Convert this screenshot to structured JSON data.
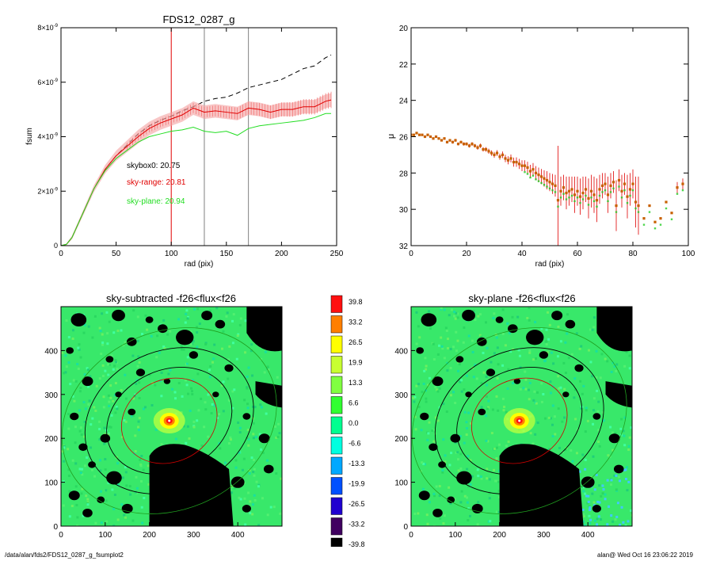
{
  "footer": {
    "path": "/data/alan/fds2/FDS12_0287_g_fsumplot2",
    "stamp": "alan@  Wed Oct 16 23:06:22 2019"
  },
  "colors": {
    "black": "#000000",
    "red": "#e00000",
    "pink": "#f08080",
    "green": "#22dd22",
    "orange": "#c86000",
    "gray": "#808080"
  },
  "chart_data": [
    {
      "type": "line",
      "title": "FDS12_0287_g",
      "xlabel": "rad (pix)",
      "ylabel": "fsum",
      "xlim": [
        0,
        250
      ],
      "ylim": [
        0,
        8e-09
      ],
      "xticks": [
        0,
        50,
        100,
        150,
        200,
        250
      ],
      "yticks": [
        {
          "label": "0",
          "value": 0
        },
        {
          "label": "2×10",
          "exp": "-9",
          "value": 2e-09
        },
        {
          "label": "4×10",
          "exp": "-9",
          "value": 4e-09
        },
        {
          "label": "6×10",
          "exp": "-9",
          "value": 6e-09
        },
        {
          "label": "8×10",
          "exp": "-9",
          "value": 8e-09
        }
      ],
      "vlines": [
        {
          "x": 100,
          "color": "#e00000"
        },
        {
          "x": 130,
          "color": "#808080"
        },
        {
          "x": 170,
          "color": "#808080"
        }
      ],
      "annotations": [
        {
          "text": "skybox0: 20.75",
          "color": "#000000"
        },
        {
          "text": "sky-range: 20.81",
          "color": "#e00000"
        },
        {
          "text": "sky-plane: 20.94",
          "color": "#22dd22"
        }
      ],
      "x": [
        0,
        5,
        10,
        20,
        30,
        40,
        50,
        60,
        70,
        80,
        90,
        100,
        110,
        120,
        130,
        140,
        150,
        160,
        170,
        180,
        190,
        200,
        210,
        220,
        230,
        240,
        245
      ],
      "series": [
        {
          "color": "#000000",
          "dash": true,
          "values": [
            0,
            5e-11,
            3e-10,
            1.2e-09,
            2.1e-09,
            2.8e-09,
            3.3e-09,
            3.7e-09,
            4.1e-09,
            4.4e-09,
            4.6e-09,
            4.75e-09,
            4.95e-09,
            5.1e-09,
            5.3e-09,
            5.4e-09,
            5.45e-09,
            5.6e-09,
            5.8e-09,
            5.9e-09,
            6e-09,
            6.1e-09,
            6.3e-09,
            6.5e-09,
            6.6e-09,
            6.9e-09,
            7e-09
          ]
        },
        {
          "color": "#e00000",
          "error_band": 2.5e-10,
          "values": [
            0,
            5e-11,
            3e-10,
            1.2e-09,
            2.1e-09,
            2.8e-09,
            3.3e-09,
            3.65e-09,
            4e-09,
            4.3e-09,
            4.5e-09,
            4.65e-09,
            4.8e-09,
            5.05e-09,
            4.9e-09,
            4.95e-09,
            4.9e-09,
            4.85e-09,
            5.05e-09,
            5e-09,
            4.9e-09,
            5e-09,
            5e-09,
            5.1e-09,
            5.1e-09,
            5.3e-09,
            5.35e-09
          ]
        },
        {
          "color": "#22dd22",
          "values": [
            0,
            5e-11,
            3e-10,
            1.2e-09,
            2.1e-09,
            2.75e-09,
            3.2e-09,
            3.5e-09,
            3.8e-09,
            4e-09,
            4.1e-09,
            4.2e-09,
            4.25e-09,
            4.35e-09,
            4.2e-09,
            4.15e-09,
            4.2e-09,
            4.05e-09,
            4.3e-09,
            4.4e-09,
            4.45e-09,
            4.5e-09,
            4.55e-09,
            4.6e-09,
            4.7e-09,
            4.85e-09,
            4.85e-09
          ]
        }
      ]
    },
    {
      "type": "scatter",
      "title": "",
      "xlabel": "rad (pix)",
      "ylabel": "μ",
      "xlim": [
        0,
        100
      ],
      "ylim": [
        32,
        20
      ],
      "yreversed": true,
      "xticks": [
        0,
        20,
        40,
        60,
        80,
        100
      ],
      "yticks": [
        20,
        22,
        24,
        26,
        28,
        30,
        32
      ],
      "series": [
        {
          "color": "#c86000",
          "x": [
            0,
            1,
            2,
            3,
            4,
            5,
            6,
            7,
            8,
            9,
            10,
            11,
            12,
            13,
            14,
            15,
            16,
            17,
            18,
            19,
            20,
            21,
            22,
            23,
            24,
            25,
            26,
            27,
            28,
            29,
            30,
            31,
            32,
            33,
            34,
            35,
            36,
            37,
            38,
            39,
            40,
            41,
            42,
            43,
            44,
            45,
            46,
            47,
            48,
            49,
            50,
            51,
            52,
            53,
            54,
            55,
            56,
            57,
            58,
            59,
            60,
            61,
            62,
            63,
            64,
            65,
            66,
            67,
            68,
            69,
            70,
            71,
            72,
            73,
            74,
            75,
            76,
            77,
            78,
            79,
            80,
            81,
            82,
            84,
            86,
            88,
            90,
            92,
            94,
            96,
            98
          ],
          "y": [
            25.9,
            25.9,
            25.8,
            25.9,
            25.9,
            26.0,
            25.9,
            26.0,
            26.1,
            26.0,
            26.1,
            26.2,
            26.1,
            26.3,
            26.2,
            26.3,
            26.2,
            26.4,
            26.3,
            26.4,
            26.4,
            26.5,
            26.4,
            26.5,
            26.6,
            26.5,
            26.7,
            26.7,
            26.8,
            26.9,
            27.0,
            26.9,
            27.1,
            27.0,
            27.2,
            27.3,
            27.2,
            27.4,
            27.4,
            27.5,
            27.6,
            27.6,
            27.7,
            27.9,
            27.8,
            28.0,
            28.1,
            28.2,
            28.3,
            28.4,
            28.5,
            28.6,
            28.7,
            29.5,
            29.0,
            28.8,
            29.1,
            29.0,
            28.9,
            29.2,
            29.0,
            29.3,
            29.1,
            28.9,
            29.4,
            29.0,
            29.2,
            29.5,
            28.9,
            28.7,
            28.6,
            29.2,
            28.7,
            28.5,
            29.8,
            28.4,
            29.0,
            28.6,
            29.3,
            28.9,
            28.6,
            29.6,
            29.8,
            30.5,
            29.8,
            30.7,
            30.5,
            29.6,
            30.2,
            28.8,
            28.6
          ],
          "err": [
            0.05,
            0.05,
            0.05,
            0.05,
            0.05,
            0.05,
            0.05,
            0.05,
            0.05,
            0.06,
            0.06,
            0.06,
            0.07,
            0.07,
            0.07,
            0.08,
            0.08,
            0.08,
            0.08,
            0.09,
            0.09,
            0.1,
            0.1,
            0.1,
            0.12,
            0.12,
            0.12,
            0.13,
            0.14,
            0.15,
            0.16,
            0.16,
            0.17,
            0.18,
            0.2,
            0.22,
            0.22,
            0.25,
            0.26,
            0.28,
            0.3,
            0.3,
            0.32,
            0.35,
            0.35,
            0.38,
            0.4,
            0.42,
            0.45,
            0.5,
            0.5,
            0.55,
            0.6,
            3.0,
            0.8,
            0.7,
            0.9,
            0.8,
            0.7,
            1.0,
            0.8,
            1.0,
            0.9,
            0.7,
            1.1,
            0.9,
            1.0,
            1.2,
            0.8,
            0.7,
            0.6,
            1.0,
            0.7,
            0.6,
            1.4,
            0.6,
            0.9,
            0.6,
            1.2,
            0.9,
            0.8,
            1.4,
            1.6,
            0.0,
            0.0,
            0.0,
            0.0,
            0.0,
            0.0,
            0.3,
            0.3
          ]
        }
      ]
    },
    {
      "type": "heatmap",
      "title": "sky-subtracted -f26<flux<f26",
      "xlim": [
        0,
        500
      ],
      "ylim": [
        0,
        500
      ],
      "xticks": [
        0,
        100,
        200,
        300,
        400
      ],
      "yticks": [
        0,
        100,
        200,
        300,
        400
      ]
    },
    {
      "type": "heatmap",
      "title": "sky-plane -f26<flux<f26",
      "xlim": [
        0,
        500
      ],
      "ylim": [
        0,
        500
      ],
      "xticks": [
        0,
        100,
        200,
        300,
        400
      ],
      "yticks": [
        0,
        100,
        200,
        300,
        400
      ]
    },
    {
      "type": "colorbar",
      "labels": [
        "39.8",
        "33.2",
        "26.5",
        "19.9",
        "13.3",
        "6.6",
        "0.0",
        "-6.6",
        "-13.3",
        "-19.9",
        "-26.5",
        "-33.2",
        "-39.8"
      ],
      "colors": [
        "#ff1010",
        "#ff7f00",
        "#ffff00",
        "#c8ff30",
        "#80ff40",
        "#30ff30",
        "#00ff90",
        "#00ffe0",
        "#00a8ff",
        "#0050ff",
        "#2000d0",
        "#400060",
        "#000000"
      ]
    }
  ]
}
